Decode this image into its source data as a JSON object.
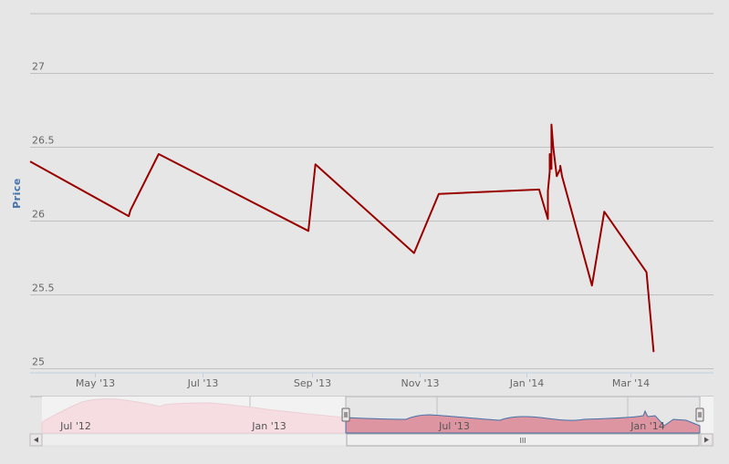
{
  "chart_data": {
    "type": "line",
    "title": "",
    "xlabel": "",
    "ylabel": "Price",
    "ylim": [
      25,
      27.4
    ],
    "y_ticks": [
      25,
      25.5,
      26,
      26.5,
      27
    ],
    "y_tick_labels": [
      "25",
      "25.5",
      "26",
      "26.5",
      "27"
    ],
    "xlim": [
      "2013-03-25",
      "2014-04-17"
    ],
    "x_ticks": [
      "2013-05-01",
      "2013-07-01",
      "2013-09-01",
      "2013-11-01",
      "2014-01-01",
      "2014-03-01"
    ],
    "x_tick_labels": [
      "May '13",
      "Jul '13",
      "Sep '13",
      "Nov '13",
      "Jan '14",
      "Mar '14"
    ],
    "grid": true,
    "legend": false,
    "color": "#990000",
    "series": [
      {
        "x": [
          "2013-03-25",
          "2013-05-20",
          "2013-05-21",
          "2013-06-06",
          "2013-08-30",
          "2013-09-03",
          "2013-10-29",
          "2013-11-12",
          "2014-01-08",
          "2014-01-13",
          "2014-01-13",
          "2014-01-14",
          "2014-01-14",
          "2014-01-15",
          "2014-01-15",
          "2014-01-16",
          "2014-01-18",
          "2014-01-20",
          "2014-01-20",
          "2014-01-21",
          "2014-02-07",
          "2014-02-14",
          "2014-03-10",
          "2014-03-14"
        ],
        "y": [
          26.4,
          26.03,
          26.07,
          26.45,
          25.93,
          26.38,
          25.78,
          26.18,
          26.21,
          26.01,
          26.2,
          26.33,
          26.45,
          26.35,
          26.65,
          26.5,
          26.3,
          26.35,
          26.37,
          26.3,
          25.56,
          26.06,
          25.65,
          25.11
        ]
      }
    ]
  },
  "navigator": {
    "labels": [
      "Jul '12",
      "Jan '13",
      "Jul '13",
      "Jan '14"
    ],
    "scroll_grip": "III"
  }
}
